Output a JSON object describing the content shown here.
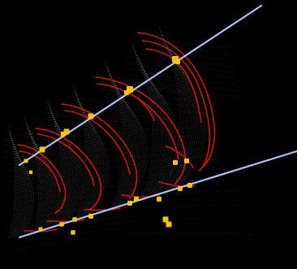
{
  "scene": {
    "background": "#000000",
    "mesh_color": "#9a9a9a",
    "arc_color": "#e01010",
    "rod_color": "#a9c4f5",
    "marker_color": "#ffcc00"
  }
}
